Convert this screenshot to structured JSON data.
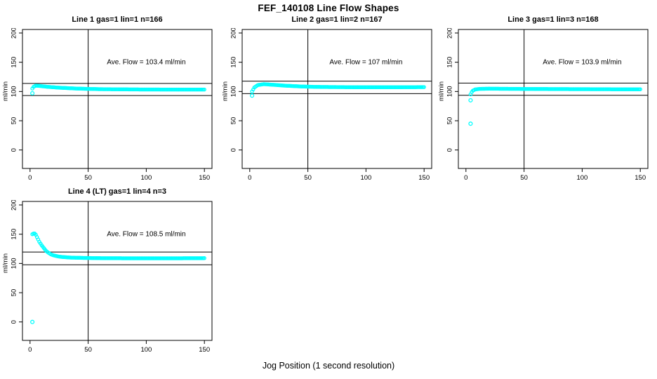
{
  "title": "FEF_140108  Line Flow Shapes",
  "xlabel": "Jog Position (1 second resolution)",
  "colors": {
    "series": "#00FFFF",
    "axis": "#000000",
    "background": "#ffffff"
  },
  "chart_data": [
    {
      "type": "scatter",
      "title": "Line 1 gas=1 lin=1 n=166",
      "n": 166,
      "ylabel": "ml/min",
      "xlim": [
        0,
        150
      ],
      "ylim": [
        0,
        200
      ],
      "x_ticks": [
        0,
        50,
        100,
        150
      ],
      "y_ticks": [
        0,
        50,
        100,
        150,
        200
      ],
      "ave_flow": 103.4,
      "ave_flow_text": "Ave. Flow =  103.4  ml/min",
      "ref_lines_h": [
        113.7,
        93.1
      ],
      "ref_line_v": 50,
      "anchors": [
        [
          2,
          105
        ],
        [
          3,
          108
        ],
        [
          5,
          110
        ],
        [
          8,
          109.5
        ],
        [
          15,
          108
        ],
        [
          25,
          106.5
        ],
        [
          40,
          105
        ],
        [
          60,
          104
        ],
        [
          90,
          103.5
        ],
        [
          120,
          103.3
        ],
        [
          150,
          103.3
        ]
      ],
      "outliers": [
        [
          2,
          97
        ]
      ],
      "marker": "open-circle"
    },
    {
      "type": "scatter",
      "title": "Line 2 gas=1 lin=2 n=167",
      "n": 167,
      "ylabel": "ml/min",
      "xlim": [
        0,
        150
      ],
      "ylim": [
        0,
        200
      ],
      "x_ticks": [
        0,
        50,
        100,
        150
      ],
      "y_ticks": [
        0,
        50,
        100,
        150,
        200
      ],
      "ave_flow": 107,
      "ave_flow_text": "Ave. Flow =  107  ml/min",
      "ref_lines_h": [
        117.7,
        96.3
      ],
      "ref_line_v": 50,
      "anchors": [
        [
          2,
          100
        ],
        [
          4,
          107
        ],
        [
          7,
          111
        ],
        [
          12,
          112.5
        ],
        [
          20,
          111.5
        ],
        [
          30,
          110
        ],
        [
          45,
          108.5
        ],
        [
          60,
          107.8
        ],
        [
          90,
          107.3
        ],
        [
          120,
          107.2
        ],
        [
          150,
          107.5
        ]
      ],
      "outliers": [
        [
          2,
          93
        ]
      ],
      "marker": "open-circle"
    },
    {
      "type": "scatter",
      "title": "Line 3 gas=1 lin=3 n=168",
      "n": 168,
      "ylabel": "ml/min",
      "xlim": [
        0,
        150
      ],
      "ylim": [
        0,
        200
      ],
      "x_ticks": [
        0,
        50,
        100,
        150
      ],
      "y_ticks": [
        0,
        50,
        100,
        150,
        200
      ],
      "ave_flow": 103.9,
      "ave_flow_text": "Ave. Flow =  103.9  ml/min",
      "ref_lines_h": [
        114.3,
        93.5
      ],
      "ref_line_v": 50,
      "anchors": [
        [
          4,
          95
        ],
        [
          5,
          99
        ],
        [
          6,
          101.5
        ],
        [
          8,
          103.5
        ],
        [
          12,
          104.5
        ],
        [
          20,
          104.8
        ],
        [
          40,
          104.5
        ],
        [
          70,
          104.2
        ],
        [
          100,
          104
        ],
        [
          130,
          103.8
        ],
        [
          150,
          103.8
        ]
      ],
      "outliers": [
        [
          4,
          85
        ],
        [
          4,
          45
        ]
      ],
      "marker": "open-circle"
    },
    {
      "type": "scatter",
      "title": "Line 4 (LT) gas=1 lin=4 n=3",
      "n": 3,
      "ylabel": "ml/min",
      "xlim": [
        0,
        150
      ],
      "ylim": [
        0,
        200
      ],
      "x_ticks": [
        0,
        50,
        100,
        150
      ],
      "y_ticks": [
        0,
        50,
        100,
        150,
        200
      ],
      "ave_flow": 108.5,
      "ave_flow_text": "Ave. Flow =  108.5  ml/min",
      "ref_lines_h": [
        119.4,
        97.7
      ],
      "ref_line_v": 50,
      "anchors": [
        [
          2,
          150
        ],
        [
          3,
          151
        ],
        [
          4,
          151
        ],
        [
          5,
          149
        ],
        [
          6,
          145
        ],
        [
          8,
          137
        ],
        [
          10,
          131
        ],
        [
          12,
          126
        ],
        [
          14,
          121
        ],
        [
          16,
          118
        ],
        [
          18,
          115.5
        ],
        [
          20,
          114
        ],
        [
          24,
          112
        ],
        [
          28,
          111
        ],
        [
          35,
          110
        ],
        [
          45,
          109.5
        ],
        [
          60,
          109
        ],
        [
          90,
          108.8
        ],
        [
          120,
          108.8
        ],
        [
          150,
          109
        ]
      ],
      "outliers": [
        [
          2,
          0
        ]
      ],
      "marker": "open-circle"
    }
  ]
}
